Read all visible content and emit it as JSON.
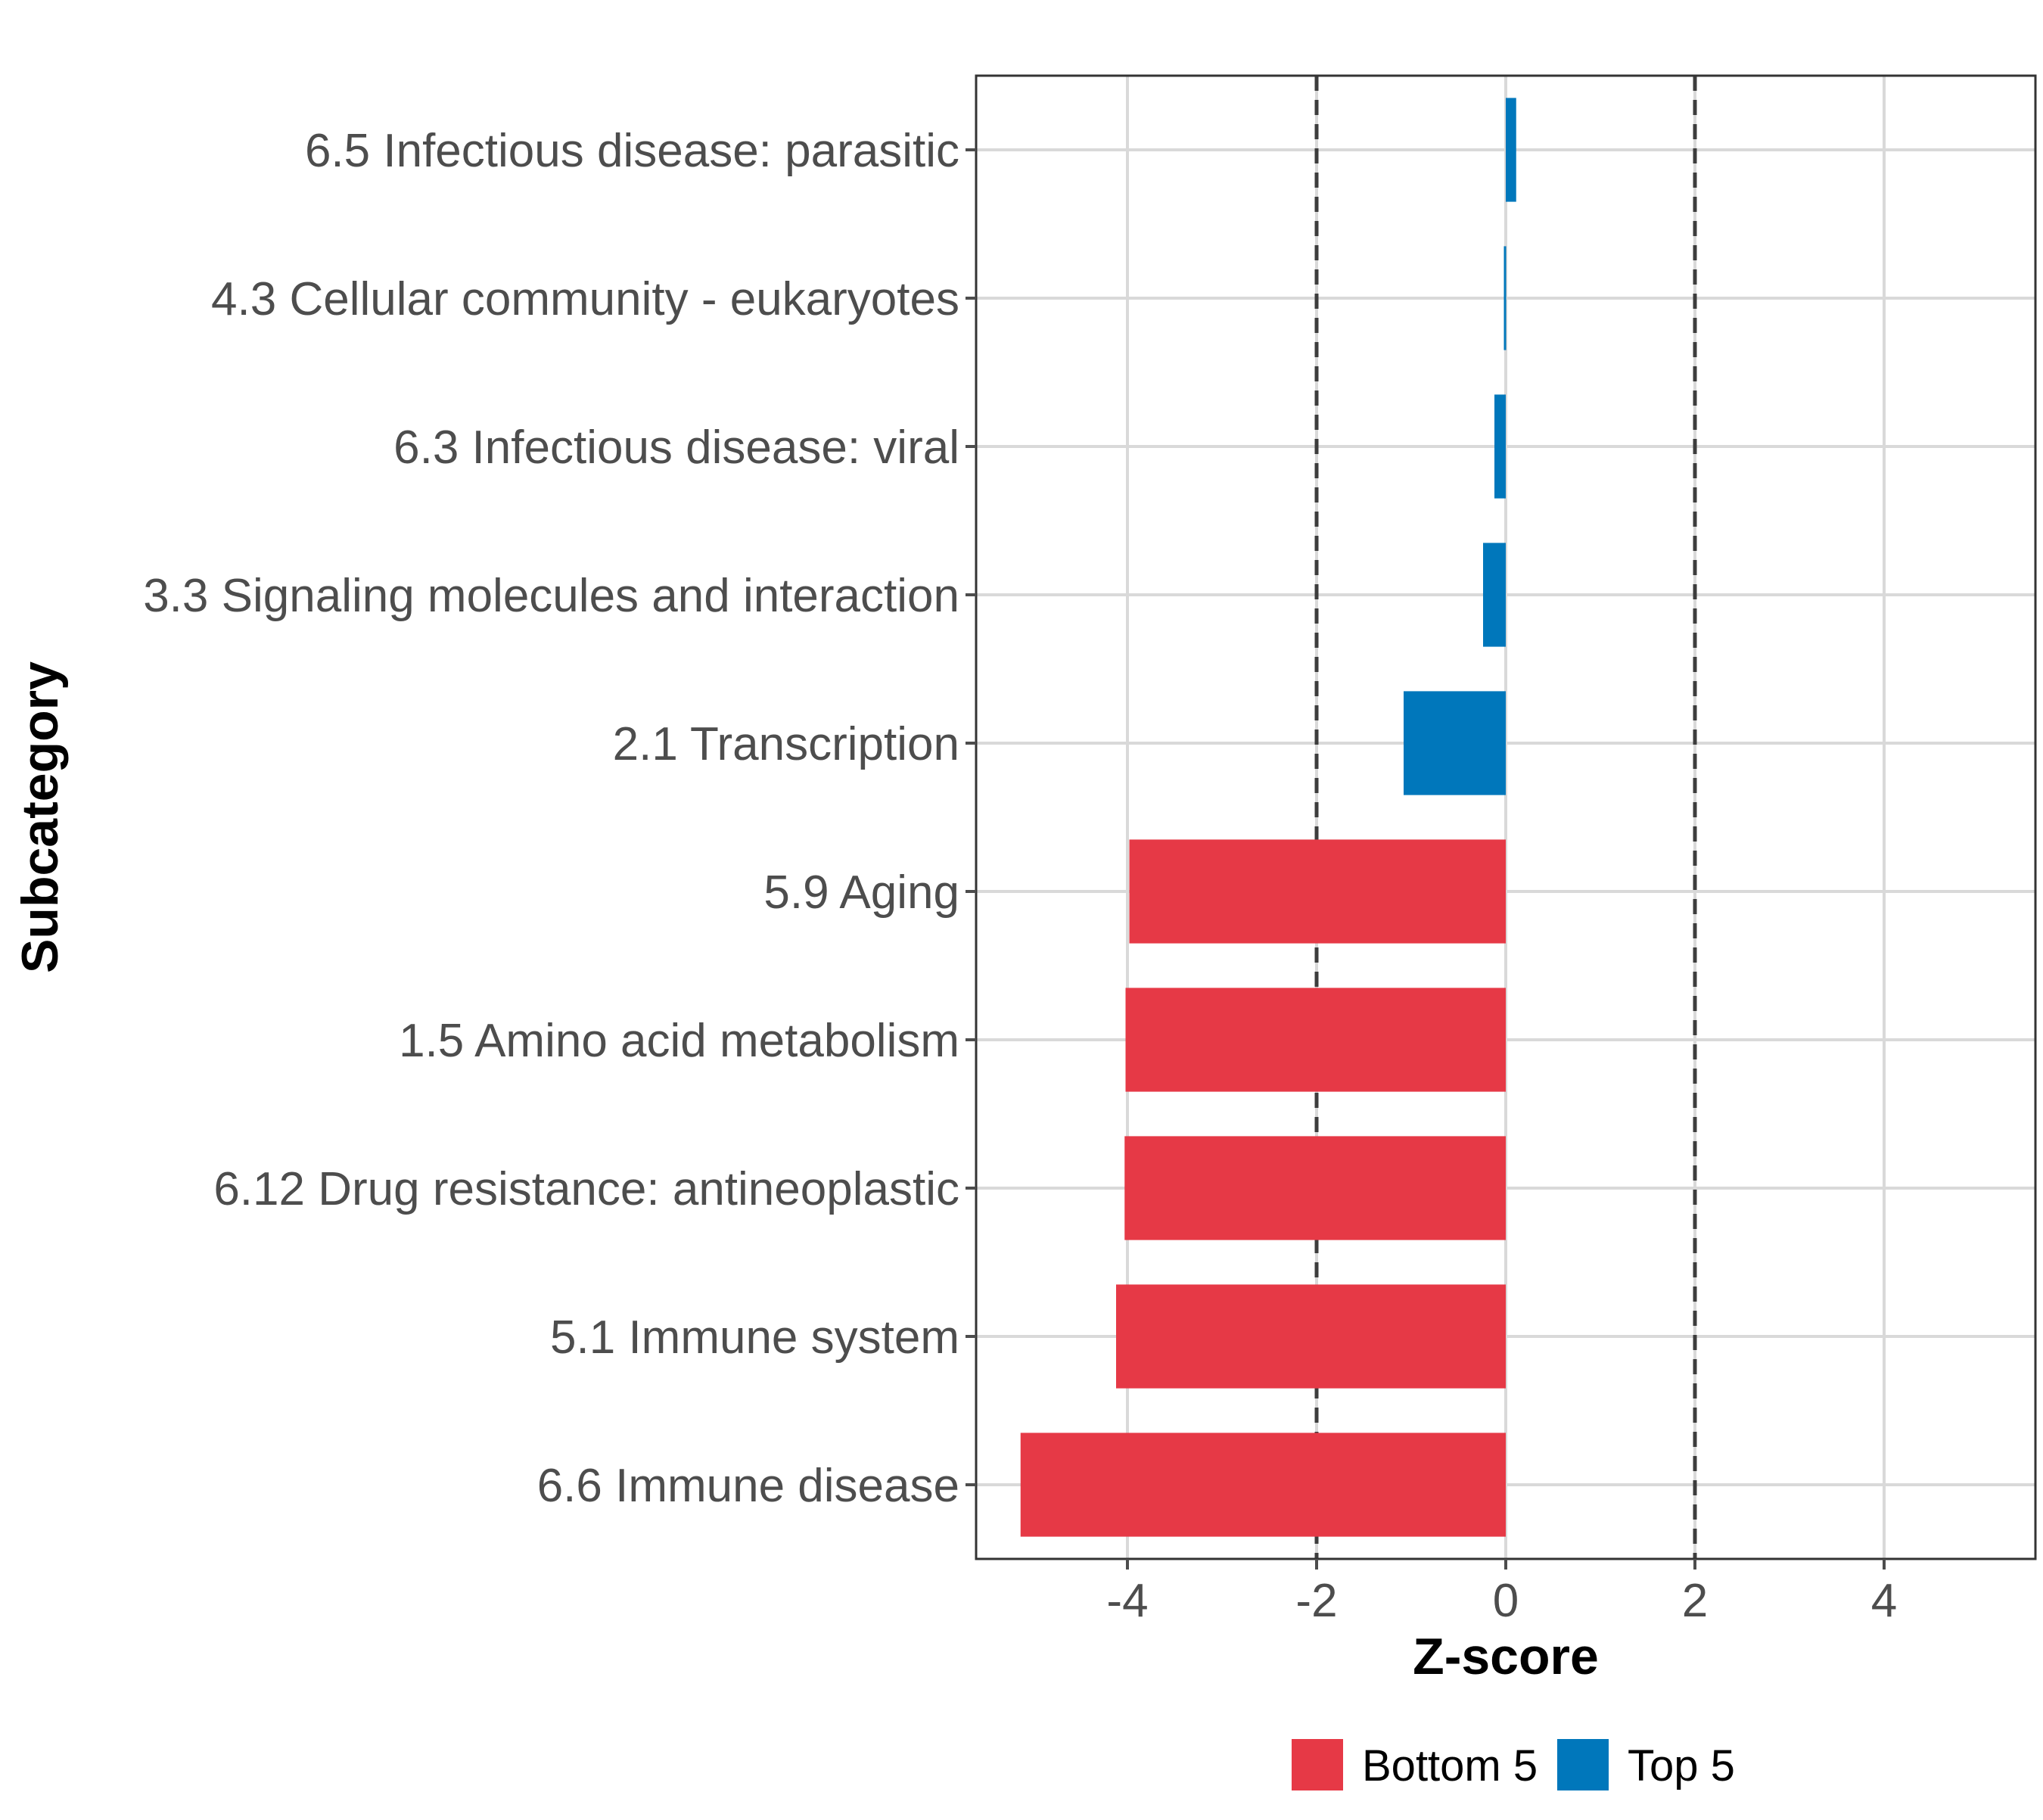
{
  "chart_data": {
    "type": "bar",
    "orientation": "horizontal",
    "title": "",
    "xlabel": "Z-score",
    "ylabel": "Subcategory",
    "xlim": [
      -5.6,
      5.6
    ],
    "x_ticks": [
      -4,
      -2,
      0,
      2,
      4
    ],
    "x_tick_labels": [
      "-4",
      "-2",
      "0",
      "2",
      "4"
    ],
    "reference_lines": [
      -2,
      2
    ],
    "grid": true,
    "categories": [
      "6.5 Infectious disease: parasitic",
      "4.3 Cellular community - eukaryotes",
      "6.3 Infectious disease: viral",
      "3.3 Signaling molecules and interaction",
      "2.1 Transcription",
      "5.9 Aging",
      "1.5 Amino acid metabolism",
      "6.12 Drug resistance: antineoplastic",
      "5.1 Immune system",
      "6.6 Immune disease"
    ],
    "values": [
      0.11,
      -0.02,
      -0.12,
      -0.24,
      -1.08,
      -3.98,
      -4.02,
      -4.03,
      -4.12,
      -5.13
    ],
    "groups": [
      "Top 5",
      "Top 5",
      "Top 5",
      "Top 5",
      "Top 5",
      "Bottom 5",
      "Bottom 5",
      "Bottom 5",
      "Bottom 5",
      "Bottom 5"
    ],
    "legend": [
      {
        "label": "Bottom 5",
        "color": "#E63946"
      },
      {
        "label": "Top 5",
        "color": "#0077BB"
      }
    ],
    "legend_position": "bottom"
  }
}
